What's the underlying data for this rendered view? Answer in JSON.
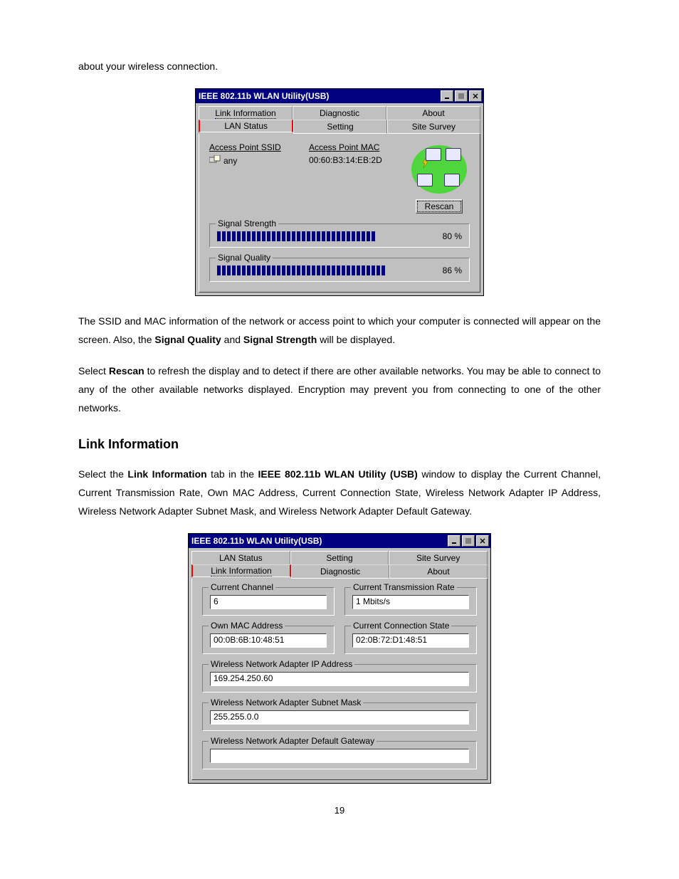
{
  "text": {
    "p1": "about your wireless connection.",
    "p2_a": "The SSID and MAC information of the network or access point to which your computer is connected will appear on the screen.  Also, the ",
    "p2_b": "Signal Quality",
    "p2_c": " and ",
    "p2_d": "Signal Strength",
    "p2_e": " will be displayed.",
    "p3_a": "Select ",
    "p3_b": "Rescan",
    "p3_c": " to refresh the display and to detect if there are other available networks.   You may be able to connect to any of the other available networks displayed.   Encryption may prevent you from connecting to one of the other networks.",
    "h2": "Link Information",
    "p4_a": "Select the ",
    "p4_b": "Link Information",
    "p4_c": " tab in the ",
    "p4_d": "IEEE 802.11b WLAN Utility (USB)",
    "p4_e": " window to display the Current Channel, Current Transmission Rate, Own MAC Address, Current Connection State, Wireless Network Adapter IP Address, Wireless Network Adapter Subnet Mask, and Wireless Network Adapter Default Gateway.",
    "page_num": "19"
  },
  "win1": {
    "title": "IEEE 802.11b WLAN Utility(USB)",
    "tabs_front": [
      "Link Information",
      "Diagnostic",
      "About"
    ],
    "tabs_back": [
      "LAN Status",
      "Setting",
      "Site Survey"
    ],
    "selected_tab": "LAN Status",
    "col_ssid_label": "Access Point SSID",
    "col_mac_label": "Access Point MAC",
    "ssid_value": "any",
    "mac_value": "00:60:B3:14:EB:2D",
    "rescan_label": "Rescan",
    "signal_strength_label": "Signal Strength",
    "signal_strength_pct": "80 %",
    "signal_strength_value": 80,
    "signal_quality_label": "Signal Quality",
    "signal_quality_pct": "86 %",
    "signal_quality_value": 86,
    "bar_segments": 40,
    "bar_fill_color": "#000080"
  },
  "win2": {
    "title": "IEEE 802.11b WLAN Utility(USB)",
    "tabs_front": [
      "LAN Status",
      "Setting",
      "Site Survey"
    ],
    "tabs_back": [
      "Link Information",
      "Diagnostic",
      "About"
    ],
    "selected_tab": "Link Information",
    "groups": {
      "current_channel": {
        "label": "Current Channel",
        "value": "6"
      },
      "current_tx_rate": {
        "label": "Current Transmission Rate",
        "value": "1 Mbits/s"
      },
      "own_mac": {
        "label": "Own MAC Address",
        "value": "00:0B:6B:10:48:51"
      },
      "conn_state": {
        "label": "Current Connection State",
        "value": "02:0B:72:D1:48:51"
      },
      "ip": {
        "label": "Wireless Network Adapter IP Address",
        "value": "169.254.250.60"
      },
      "subnet": {
        "label": "Wireless Network Adapter Subnet Mask",
        "value": "255.255.0.0"
      },
      "gateway": {
        "label": "Wireless Network Adapter Default Gateway",
        "value": ""
      }
    }
  },
  "style": {
    "titlebar_bg": "#000080",
    "window_bg": "#c0c0c0",
    "highlight_border": "#ff0000",
    "netimg_bg": "#4fd63f"
  }
}
